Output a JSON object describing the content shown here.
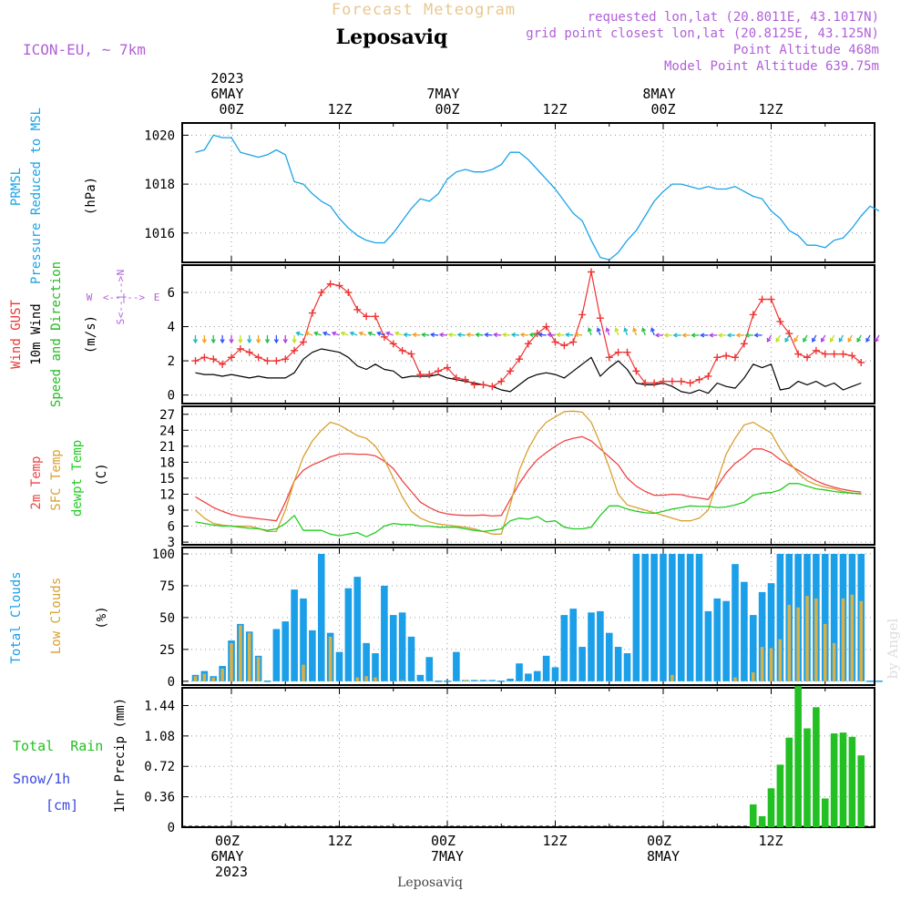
{
  "header": {
    "title": "Forecast Meteogram",
    "location": "Leposaviq",
    "model": "ICON-EU, ~ 7km",
    "requested": "requested lon,lat (20.8011E, 43.1017N)",
    "grid_point": "grid point closest lon,lat (20.8125E, 43.125N)",
    "point_altitude": "Point Altitude 468m",
    "model_altitude": "Model Point Altitude 639.75m",
    "credit": "by Angel",
    "footer_location": "Leposaviq"
  },
  "time_axis": {
    "top_labels": [
      {
        "lines": [
          "2023",
          "6MAY",
          "00Z"
        ]
      },
      {
        "lines": [
          "12Z"
        ]
      },
      {
        "lines": [
          "7MAY",
          "00Z"
        ]
      },
      {
        "lines": [
          "12Z"
        ]
      },
      {
        "lines": [
          "8MAY",
          "00Z"
        ]
      },
      {
        "lines": [
          "12Z"
        ]
      }
    ],
    "bottom_labels": [
      {
        "lines": [
          "00Z",
          "6MAY",
          "2023"
        ]
      },
      {
        "lines": [
          "12Z"
        ]
      },
      {
        "lines": [
          "00Z",
          "7MAY"
        ]
      },
      {
        "lines": [
          "12Z"
        ]
      },
      {
        "lines": [
          "00Z",
          "8MAY"
        ]
      },
      {
        "lines": [
          "12Z"
        ]
      }
    ]
  },
  "panels": {
    "pressure": {
      "label1": "PRMSL",
      "label2": "Pressure Reduced to MSL",
      "unit": "(hPa)",
      "ticks": [
        "1016",
        "1018",
        "1020"
      ],
      "color": "#1aa3e8"
    },
    "wind": {
      "label_gust": "Wind GUST",
      "label_wind": "10m Wind",
      "label_dir": "Speed and Direction",
      "unit": "(m/s)",
      "ticks": [
        "0",
        "2",
        "4",
        "6"
      ],
      "compass_n": "N",
      "compass_s": "S",
      "compass_w": "W",
      "compass_e": "E"
    },
    "temp": {
      "label_t2m": "2m Temp",
      "label_sfc": "SFC Temp",
      "label_dew": "dewpt Temp",
      "unit": "(C)",
      "ticks": [
        "3",
        "6",
        "9",
        "12",
        "15",
        "18",
        "21",
        "24",
        "27"
      ]
    },
    "clouds": {
      "label_total": "Total Clouds",
      "label_low": "Low Clouds",
      "unit": "(%)",
      "ticks": [
        "0",
        "25",
        "50",
        "75",
        "100"
      ]
    },
    "precip": {
      "label_rain": "Total  Rain",
      "label_snow": "Snow/1h",
      "label_cm": "[cm]",
      "unit": "1hr Precip (mm)",
      "ticks": [
        "0",
        "0.36",
        "0.72",
        "1.08",
        "1.44"
      ]
    }
  },
  "chart_data": [
    {
      "type": "line",
      "name": "PRMSL",
      "ylabel": "(hPa)",
      "ylim": [
        1014.8,
        1020.5
      ],
      "x_hours": [
        -4,
        -3,
        -2,
        -1,
        0,
        1,
        2,
        3,
        4,
        5,
        6,
        7,
        8,
        9,
        10,
        11,
        12,
        13,
        14,
        15,
        16,
        17,
        18,
        19,
        20,
        21,
        22,
        23,
        24,
        25,
        26,
        27,
        28,
        29,
        30,
        31,
        32,
        33,
        34,
        35,
        36,
        37,
        38,
        39,
        40,
        41,
        42,
        43,
        44,
        45,
        46,
        47,
        48,
        49,
        50,
        51,
        52,
        53,
        54,
        55,
        56,
        57,
        58,
        59,
        60,
        61,
        62,
        63,
        64,
        65,
        66,
        67,
        68,
        69,
        70,
        71,
        72
      ],
      "values": [
        1019.3,
        1019.4,
        1020.0,
        1019.9,
        1019.9,
        1019.3,
        1019.2,
        1019.1,
        1019.2,
        1019.4,
        1019.2,
        1018.1,
        1018.0,
        1017.6,
        1017.3,
        1017.1,
        1016.6,
        1016.2,
        1015.9,
        1015.7,
        1015.6,
        1015.6,
        1016.0,
        1016.5,
        1017.0,
        1017.4,
        1017.3,
        1017.6,
        1018.2,
        1018.5,
        1018.6,
        1018.5,
        1018.5,
        1018.6,
        1018.8,
        1019.3,
        1019.3,
        1019.0,
        1018.6,
        1018.2,
        1017.8,
        1017.3,
        1016.8,
        1016.5,
        1015.7,
        1015.0,
        1014.9,
        1015.2,
        1015.7,
        1016.1,
        1016.7,
        1017.3,
        1017.7,
        1018.0,
        1018.0,
        1017.9,
        1017.8,
        1017.9,
        1017.8,
        1017.8,
        1017.9,
        1017.7,
        1017.5,
        1017.4,
        1016.9,
        1016.6,
        1016.1,
        1015.9,
        1015.5,
        1015.5,
        1015.4,
        1015.7,
        1015.8,
        1016.2,
        1016.7,
        1017.1,
        1016.9
      ]
    },
    {
      "type": "line",
      "name": "Wind",
      "ylabel": "(m/s)",
      "ylim": [
        -0.5,
        7.6
      ],
      "x_hours": [
        -4,
        -3,
        -2,
        -1,
        0,
        1,
        2,
        3,
        4,
        5,
        6,
        7,
        8,
        9,
        10,
        11,
        12,
        13,
        14,
        15,
        16,
        17,
        18,
        19,
        20,
        21,
        22,
        23,
        24,
        25,
        26,
        27,
        28,
        29,
        30,
        31,
        32,
        33,
        34,
        35,
        36,
        37,
        38,
        39,
        40,
        41,
        42,
        43,
        44,
        45,
        46,
        47,
        48,
        49,
        50,
        51,
        52,
        53,
        54,
        55,
        56,
        57,
        58,
        59,
        60,
        61,
        62,
        63,
        64,
        65,
        66,
        67,
        68,
        69,
        70,
        71,
        72
      ],
      "series": [
        {
          "name": "Wind GUST",
          "color": "#ee3333",
          "markers": "plus",
          "values": [
            2.0,
            2.2,
            2.1,
            1.8,
            2.2,
            2.7,
            2.5,
            2.2,
            2.0,
            2.0,
            2.1,
            2.6,
            3.1,
            4.8,
            6.0,
            6.5,
            6.4,
            6.0,
            5.0,
            4.6,
            4.6,
            3.4,
            3.0,
            2.6,
            2.4,
            1.2,
            1.2,
            1.4,
            1.6,
            1.0,
            0.9,
            0.6,
            0.6,
            0.5,
            0.8,
            1.4,
            2.1,
            3.0,
            3.6,
            4.0,
            3.1,
            2.9,
            3.1,
            4.7,
            7.2,
            4.5,
            2.2,
            2.5,
            2.5,
            1.4,
            0.7,
            0.7,
            0.8,
            0.8,
            0.8,
            0.7,
            0.9,
            1.1,
            2.2,
            2.3,
            2.2,
            3.0,
            4.7,
            5.6,
            5.6,
            4.3,
            3.6,
            2.4,
            2.2,
            2.6,
            2.4,
            2.4,
            2.4,
            2.3,
            1.9
          ]
        },
        {
          "name": "10m Wind",
          "color": "#000000",
          "markers": "none",
          "values": [
            1.3,
            1.2,
            1.2,
            1.1,
            1.2,
            1.1,
            1.0,
            1.1,
            1.0,
            1.0,
            1.0,
            1.3,
            2.1,
            2.5,
            2.7,
            2.6,
            2.5,
            2.2,
            1.7,
            1.5,
            1.8,
            1.5,
            1.4,
            1.0,
            1.1,
            1.1,
            1.1,
            1.2,
            1.0,
            0.9,
            0.8,
            0.7,
            0.6,
            0.5,
            0.3,
            0.2,
            0.6,
            1.0,
            1.2,
            1.3,
            1.2,
            1.0,
            1.4,
            1.8,
            2.2,
            1.1,
            1.6,
            2.0,
            1.5,
            0.7,
            0.6,
            0.6,
            0.7,
            0.5,
            0.2,
            0.1,
            0.3,
            0.1,
            0.7,
            0.5,
            0.4,
            1.0,
            1.8,
            1.6,
            1.8,
            0.3,
            0.4,
            0.8,
            0.6,
            0.8,
            0.5,
            0.7,
            0.3,
            0.5,
            0.7
          ]
        }
      ],
      "direction_arrows_color_cycle": [
        "#1ab8c8",
        "#f0a020",
        "#20c040",
        "#3050ff",
        "#b040e0",
        "#c0e020"
      ]
    },
    {
      "type": "line",
      "name": "Temperature",
      "ylabel": "(C)",
      "ylim": [
        2.5,
        28.5
      ],
      "x_hours": [
        -4,
        -3,
        -2,
        -1,
        0,
        1,
        2,
        3,
        4,
        5,
        6,
        7,
        8,
        9,
        10,
        11,
        12,
        13,
        14,
        15,
        16,
        17,
        18,
        19,
        20,
        21,
        22,
        23,
        24,
        25,
        26,
        27,
        28,
        29,
        30,
        31,
        32,
        33,
        34,
        35,
        36,
        37,
        38,
        39,
        40,
        41,
        42,
        43,
        44,
        45,
        46,
        47,
        48,
        49,
        50,
        51,
        52,
        53,
        54,
        55,
        56,
        57,
        58,
        59,
        60,
        61,
        62,
        63,
        64,
        65,
        66,
        67,
        68,
        69,
        70,
        71,
        72
      ],
      "series": [
        {
          "name": "2m Temp",
          "color": "#ee4444",
          "values": [
            11.5,
            10.5,
            9.5,
            8.8,
            8.2,
            7.8,
            7.6,
            7.4,
            7.2,
            7.0,
            10.5,
            14.5,
            16.5,
            17.5,
            18.2,
            19.0,
            19.5,
            19.6,
            19.5,
            19.5,
            19.2,
            18.2,
            16.8,
            14.5,
            12.5,
            10.5,
            9.5,
            8.7,
            8.3,
            8.1,
            8.0,
            8.0,
            8.1,
            7.9,
            8.0,
            11.0,
            14.0,
            16.5,
            18.5,
            19.8,
            21.0,
            22.0,
            22.5,
            22.8,
            22.0,
            20.5,
            19.0,
            17.5,
            15.0,
            13.5,
            12.5,
            11.8,
            11.8,
            12.0,
            11.9,
            11.5,
            11.3,
            11.0,
            13.5,
            16.0,
            17.8,
            19.0,
            20.5,
            20.5,
            19.8,
            18.5,
            17.5,
            16.5,
            15.5,
            14.5,
            13.8,
            13.3,
            12.9,
            12.6,
            12.4
          ]
        },
        {
          "name": "SFC Temp",
          "color": "#d8a030",
          "values": [
            9.0,
            7.5,
            6.5,
            6.2,
            6.0,
            6.0,
            6.0,
            5.6,
            5.0,
            5.0,
            9.0,
            14.5,
            19.0,
            22.0,
            24.0,
            25.5,
            25.0,
            24.0,
            23.0,
            22.5,
            21.0,
            18.5,
            15.0,
            11.5,
            8.8,
            7.5,
            6.8,
            6.4,
            6.2,
            6.0,
            5.8,
            5.5,
            5.0,
            4.5,
            4.5,
            10.0,
            16.5,
            20.5,
            23.5,
            25.5,
            26.5,
            27.5,
            27.6,
            27.4,
            25.5,
            21.5,
            17.0,
            12.0,
            10.0,
            9.5,
            9.0,
            8.5,
            8.0,
            7.5,
            7.0,
            7.0,
            7.5,
            9.0,
            14.5,
            19.5,
            22.5,
            25.0,
            25.5,
            24.5,
            23.5,
            20.5,
            18.0,
            16.0,
            14.5,
            13.8,
            13.3,
            13.0,
            12.5,
            12.2,
            12.0
          ]
        },
        {
          "name": "dewpt Temp",
          "color": "#22cc22",
          "values": [
            6.8,
            6.5,
            6.2,
            6.0,
            6.0,
            5.8,
            5.6,
            5.5,
            5.2,
            5.5,
            6.5,
            8.0,
            5.2,
            5.2,
            5.2,
            4.5,
            4.2,
            4.5,
            4.8,
            4.0,
            4.8,
            6.0,
            6.5,
            6.3,
            6.3,
            6.0,
            6.0,
            5.8,
            5.8,
            5.8,
            5.5,
            5.2,
            5.0,
            5.2,
            5.5,
            7.0,
            7.5,
            7.3,
            7.8,
            6.8,
            7.0,
            5.8,
            5.5,
            5.5,
            5.8,
            8.0,
            9.8,
            9.8,
            9.2,
            8.8,
            8.5,
            8.4,
            8.8,
            9.2,
            9.5,
            9.8,
            9.7,
            9.7,
            9.5,
            9.6,
            10.0,
            10.5,
            11.8,
            12.2,
            12.3,
            12.8,
            14.0,
            14.0,
            13.5,
            13.0,
            12.8,
            12.5,
            12.3,
            12.2,
            12.1
          ]
        }
      ]
    },
    {
      "type": "bar",
      "name": "Clouds",
      "ylabel": "(%)",
      "ylim": [
        -3,
        105
      ],
      "x_hours": [
        -4,
        -3,
        -2,
        -1,
        0,
        1,
        2,
        3,
        4,
        5,
        6,
        7,
        8,
        9,
        10,
        11,
        12,
        13,
        14,
        15,
        16,
        17,
        18,
        19,
        20,
        21,
        22,
        23,
        24,
        25,
        26,
        27,
        28,
        29,
        30,
        31,
        32,
        33,
        34,
        35,
        36,
        37,
        38,
        39,
        40,
        41,
        42,
        43,
        44,
        45,
        46,
        47,
        48,
        49,
        50,
        51,
        52,
        53,
        54,
        55,
        56,
        57,
        58,
        59,
        60,
        61,
        62,
        63,
        64,
        65,
        66,
        67,
        68,
        69,
        70,
        71,
        72
      ],
      "series": [
        {
          "name": "Total Clouds",
          "color": "#1a9fe8",
          "values": [
            5,
            8,
            4,
            12,
            32,
            45,
            39,
            20,
            0,
            41,
            47,
            72,
            65,
            40,
            100,
            38,
            23,
            73,
            82,
            30,
            22,
            75,
            52,
            54,
            35,
            5,
            19,
            0,
            0,
            23,
            1,
            1,
            1,
            1,
            0,
            2,
            14,
            6,
            8,
            20,
            11,
            52,
            57,
            27,
            54,
            55,
            38,
            27,
            22,
            100,
            100,
            100,
            100,
            100,
            100,
            100,
            100,
            55,
            65,
            63,
            92,
            78,
            52,
            70,
            77,
            100,
            100,
            100,
            100,
            100,
            100,
            100,
            100,
            100,
            100
          ]
        },
        {
          "name": "Low Clouds",
          "color": "#d8b048",
          "values": [
            4,
            6,
            3,
            10,
            30,
            44,
            38,
            19,
            0,
            0,
            0,
            0,
            13,
            0,
            0,
            35,
            0,
            0,
            3,
            4,
            3,
            0,
            0,
            1,
            0,
            0,
            0,
            0,
            0,
            0,
            1,
            0,
            0,
            0,
            0,
            0,
            0,
            0,
            0,
            0,
            0,
            0,
            0,
            0,
            0,
            0,
            0,
            0,
            0,
            0,
            0,
            0,
            0,
            5,
            0,
            0,
            0,
            0,
            0,
            0,
            3,
            0,
            7,
            27,
            26,
            33,
            60,
            58,
            67,
            65,
            45,
            30,
            65,
            68,
            63
          ]
        }
      ]
    },
    {
      "type": "bar",
      "name": "Precipitation",
      "ylabel": "1hr Precip (mm)",
      "ylim": [
        0,
        1.65
      ],
      "x_hours": [
        58,
        59,
        60,
        61,
        62,
        63,
        64,
        65,
        66,
        67,
        68,
        69,
        70,
        71,
        72
      ],
      "series": [
        {
          "name": "Total Rain",
          "color": "#22c022",
          "values": [
            0.27,
            0.13,
            0.46,
            0.74,
            1.06,
            1.67,
            1.17,
            1.42,
            0.34,
            1.11,
            1.12,
            1.07,
            0.85,
            0,
            0
          ]
        }
      ]
    }
  ]
}
